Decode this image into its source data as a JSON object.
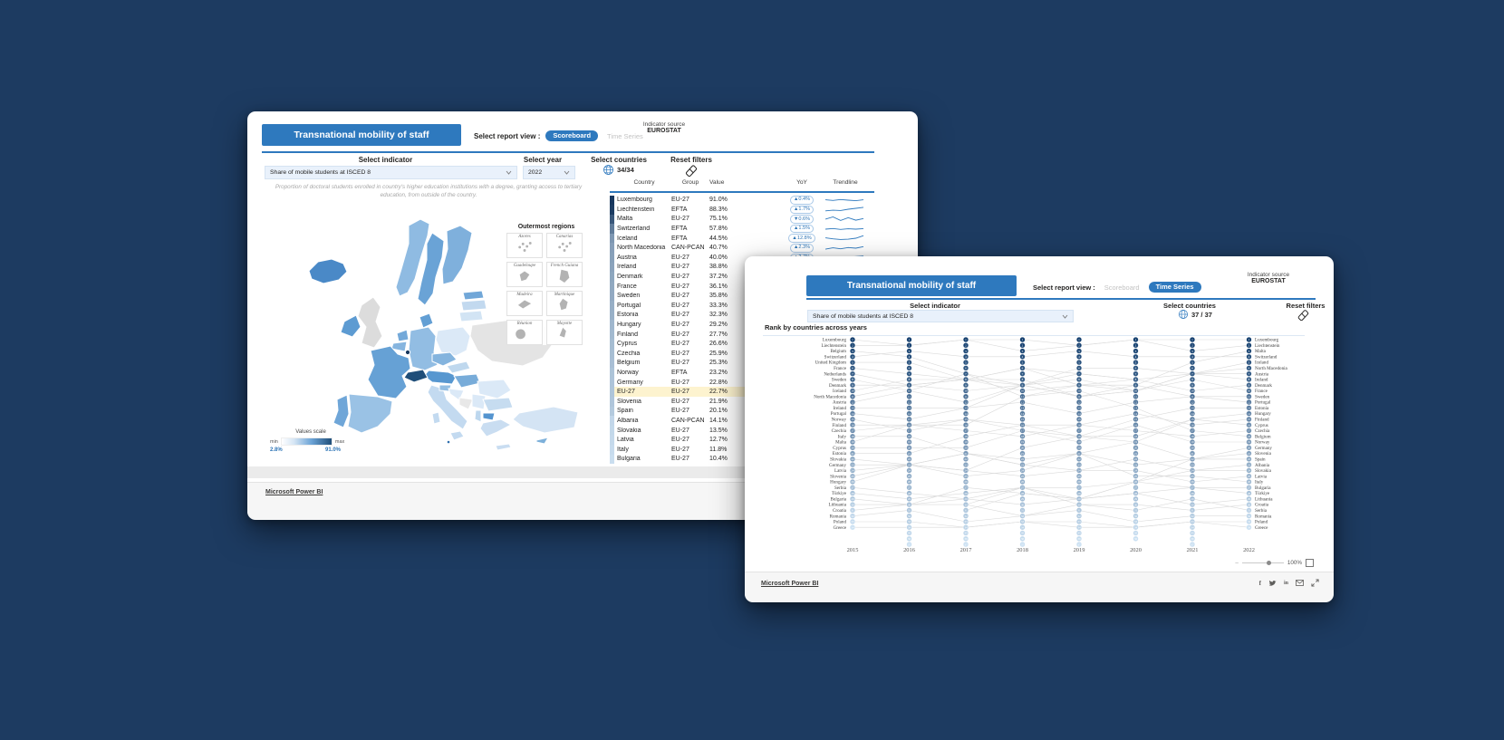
{
  "scoreboard_window": {
    "title": "Transnational mobility of staff",
    "report_view": {
      "label": "Select report view :",
      "scoreboard": "Scoreboard",
      "timeseries": "Time Series",
      "active": "Scoreboard"
    },
    "indicator_source": {
      "label": "Indicator source",
      "value": "EUROSTAT"
    },
    "filters": {
      "indicator_label": "Select indicator",
      "indicator_value": "Share of mobile students at ISCED 8",
      "year_label": "Select year",
      "year_value": "2022",
      "countries_label": "Select countries",
      "countries_count": "34/34",
      "reset_label": "Reset filters"
    },
    "subtitle": "Proportion of doctoral students enrolled in country's higher education institutions with a degree, granting access to tertiary education, from outside of the country.",
    "map": {
      "legend": {
        "title": "Values scale",
        "min_label": "min",
        "max_label": "max",
        "min_value": "2.8%",
        "max_value": "91.0%"
      },
      "outermost": {
        "title": "Outermost regions",
        "regions": [
          "Azores",
          "Canarias",
          "Guadeloupe",
          "French Guiana",
          "Madeira",
          "Martinique",
          "Réunion",
          "Mayotte"
        ]
      }
    },
    "table": {
      "columns": [
        "Country",
        "Group",
        "Value",
        "YoY",
        "Trendline"
      ],
      "value_max": 91.0,
      "rows": [
        {
          "country": "Luxembourg",
          "group": "EU-27",
          "value": "91.0%",
          "yoy": "▲0.4%",
          "trend": [
            0.55,
            0.45,
            0.6,
            0.5,
            0.42,
            0.55
          ]
        },
        {
          "country": "Liechtenstein",
          "group": "EFTA",
          "value": "88.3%",
          "yoy": "▲1.7%",
          "trend": [
            0.25,
            0.35,
            0.3,
            0.5,
            0.65,
            0.8
          ]
        },
        {
          "country": "Malta",
          "group": "EU-27",
          "value": "75.1%",
          "yoy": "▼0.6%",
          "trend": [
            0.5,
            0.85,
            0.3,
            0.75,
            0.35,
            0.6
          ]
        },
        {
          "country": "Switzerland",
          "group": "EFTA",
          "value": "57.8%",
          "yoy": "▲1.5%",
          "trend": [
            0.5,
            0.6,
            0.45,
            0.55,
            0.5,
            0.58
          ]
        },
        {
          "country": "Iceland",
          "group": "EFTA",
          "value": "44.5%",
          "yoy": "▲12.8%",
          "trend": [
            0.55,
            0.4,
            0.3,
            0.35,
            0.5,
            0.9
          ]
        },
        {
          "country": "North Macedonia",
          "group": "CAN-PCAN",
          "value": "40.7%",
          "yoy": "▲2.3%",
          "trend": [
            0.35,
            0.55,
            0.4,
            0.6,
            0.5,
            0.75
          ]
        },
        {
          "country": "Austria",
          "group": "EU-27",
          "value": "40.0%",
          "yoy": "▲2.7%",
          "trend": [
            0.45,
            0.5,
            0.55,
            0.5,
            0.6,
            0.68
          ]
        },
        {
          "country": "Ireland",
          "group": "EU-27",
          "value": "38.8%"
        },
        {
          "country": "Denmark",
          "group": "EU-27",
          "value": "37.2%"
        },
        {
          "country": "France",
          "group": "EU-27",
          "value": "36.1%"
        },
        {
          "country": "Sweden",
          "group": "EU-27",
          "value": "35.8%"
        },
        {
          "country": "Portugal",
          "group": "EU-27",
          "value": "33.3%"
        },
        {
          "country": "Estonia",
          "group": "EU-27",
          "value": "32.3%"
        },
        {
          "country": "Hungary",
          "group": "EU-27",
          "value": "29.2%"
        },
        {
          "country": "Finland",
          "group": "EU-27",
          "value": "27.7%"
        },
        {
          "country": "Cyprus",
          "group": "EU-27",
          "value": "26.6%"
        },
        {
          "country": "Czechia",
          "group": "EU-27",
          "value": "25.9%"
        },
        {
          "country": "Belgium",
          "group": "EU-27",
          "value": "25.3%"
        },
        {
          "country": "Norway",
          "group": "EFTA",
          "value": "23.2%"
        },
        {
          "country": "Germany",
          "group": "EU-27",
          "value": "22.8%"
        },
        {
          "country": "EU-27",
          "group": "EU-27",
          "value": "22.7%",
          "highlight": true
        },
        {
          "country": "Slovenia",
          "group": "EU-27",
          "value": "21.9%"
        },
        {
          "country": "Spain",
          "group": "EU-27",
          "value": "20.1%"
        },
        {
          "country": "Albania",
          "group": "CAN-PCAN",
          "value": "14.1%"
        },
        {
          "country": "Slovakia",
          "group": "EU-27",
          "value": "13.5%"
        },
        {
          "country": "Latvia",
          "group": "EU-27",
          "value": "12.7%"
        },
        {
          "country": "Italy",
          "group": "EU-27",
          "value": "11.8%"
        },
        {
          "country": "Bulgaria",
          "group": "EU-27",
          "value": "10.4%"
        }
      ]
    },
    "footer": {
      "brand": "Microsoft Power BI"
    }
  },
  "timeseries_window": {
    "title": "Transnational mobility of staff",
    "report_view": {
      "label": "Select report view :",
      "scoreboard": "Scoreboard",
      "timeseries": "Time Series",
      "active": "Time Series"
    },
    "indicator_source": {
      "label": "Indicator source",
      "value": "EUROSTAT"
    },
    "filters": {
      "indicator_label": "Select indicator",
      "indicator_value": "Share of mobile students at ISCED 8",
      "countries_label": "Select countries",
      "countries_count": "37 / 37",
      "reset_label": "Reset filters"
    },
    "chart": {
      "type": "rank-bump",
      "title": "Rank by countries across years",
      "years": [
        "2015",
        "2016",
        "2017",
        "2018",
        "2019",
        "2020",
        "2021",
        "2022"
      ],
      "column_node_counts": [
        34,
        37,
        37,
        37,
        37,
        36,
        37,
        34
      ],
      "ranking_2015": [
        "Luxembourg",
        "Liechtenstein",
        "Belgium",
        "Switzerland",
        "United Kingdom",
        "France",
        "Netherlands",
        "Sweden",
        "Denmark",
        "Iceland",
        "North Macedonia",
        "Austria",
        "Ireland",
        "Portugal",
        "Norway",
        "Finland",
        "Czechia",
        "Italy",
        "Malta",
        "Cyprus",
        "Estonia",
        "Slovakia",
        "Germany",
        "Latvia",
        "Slovenia",
        "Hungary",
        "Serbia",
        "Türkiye",
        "Bulgaria",
        "Lithuania",
        "Croatia",
        "Romania",
        "Poland",
        "Greece"
      ],
      "ranking_2022": [
        "Luxembourg",
        "Liechtenstein",
        "Malta",
        "Switzerland",
        "Iceland",
        "North Macedonia",
        "Austria",
        "Ireland",
        "Denmark",
        "France",
        "Sweden",
        "Portugal",
        "Estonia",
        "Hungary",
        "Finland",
        "Cyprus",
        "Czechia",
        "Belgium",
        "Norway",
        "Germany",
        "Slovenia",
        "Spain",
        "Albania",
        "Slovakia",
        "Latvia",
        "Italy",
        "Bulgaria",
        "Türkiye",
        "Lithuania",
        "Croatia",
        "Serbia",
        "Romania",
        "Poland",
        "Greece"
      ]
    },
    "zoom": {
      "value": "100%"
    },
    "footer": {
      "brand": "Microsoft Power BI"
    },
    "colors": {
      "accent": "#2e79be",
      "node_dark": "#15406f",
      "node_light": "#cae0f2"
    }
  }
}
